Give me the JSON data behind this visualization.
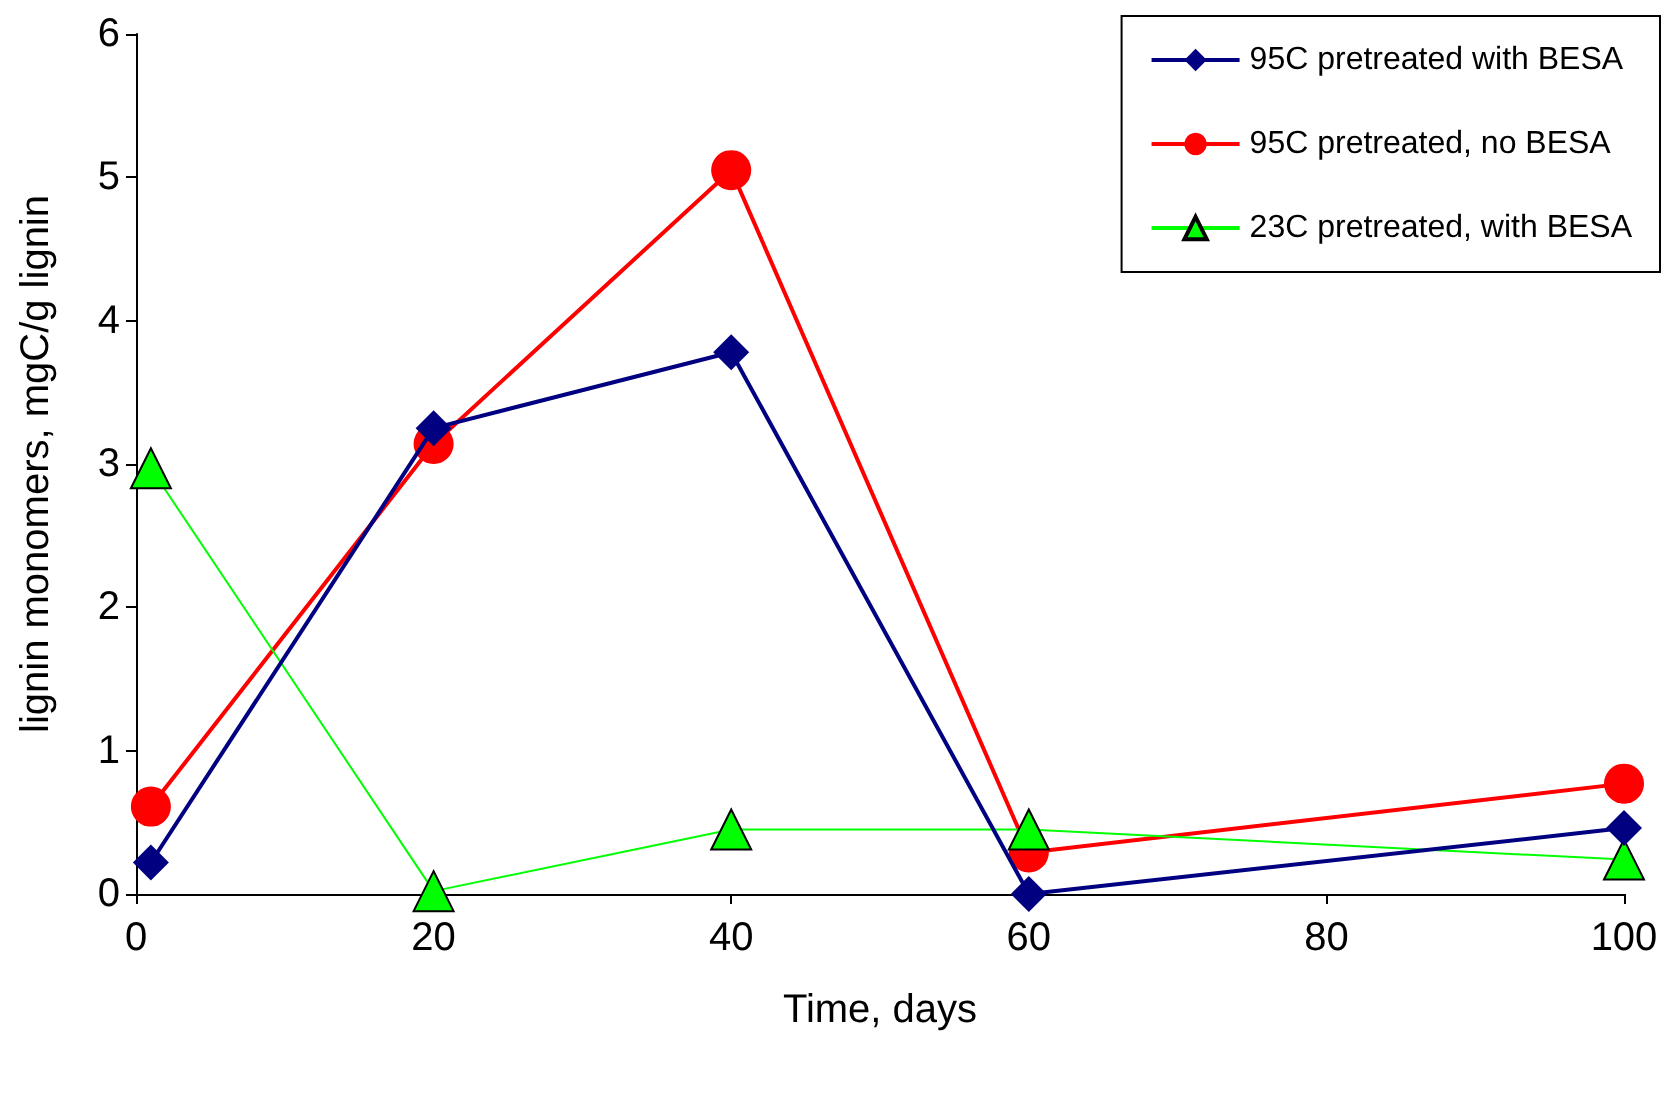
{
  "chart_data": {
    "type": "line",
    "xlabel": "Time, days",
    "ylabel": "lignin monomers, mgC/g lignin",
    "x": [
      1,
      20,
      40,
      60,
      100
    ],
    "series": [
      {
        "name": "95C pretreated with BESA",
        "color": "#000080",
        "marker": "diamond",
        "values": [
          0.22,
          3.25,
          3.78,
          0,
          0.46
        ]
      },
      {
        "name": "95C pretreated, no BESA",
        "color": "#ff0000",
        "marker": "circle",
        "values": [
          0.61,
          3.14,
          5.05,
          0.29,
          0.77
        ]
      },
      {
        "name": "23C pretreated, with BESA",
        "color": "#00ff00",
        "marker": "triangle",
        "values": [
          2.97,
          0.02,
          0.45,
          0.45,
          0.24
        ]
      }
    ],
    "xlim": [
      0,
      100
    ],
    "xticks": [
      0,
      20,
      40,
      60,
      80,
      100
    ],
    "ylim": [
      0,
      6
    ],
    "yticks": [
      0,
      1,
      2,
      3,
      4,
      5,
      6
    ],
    "grid": false,
    "legend": "top right"
  }
}
